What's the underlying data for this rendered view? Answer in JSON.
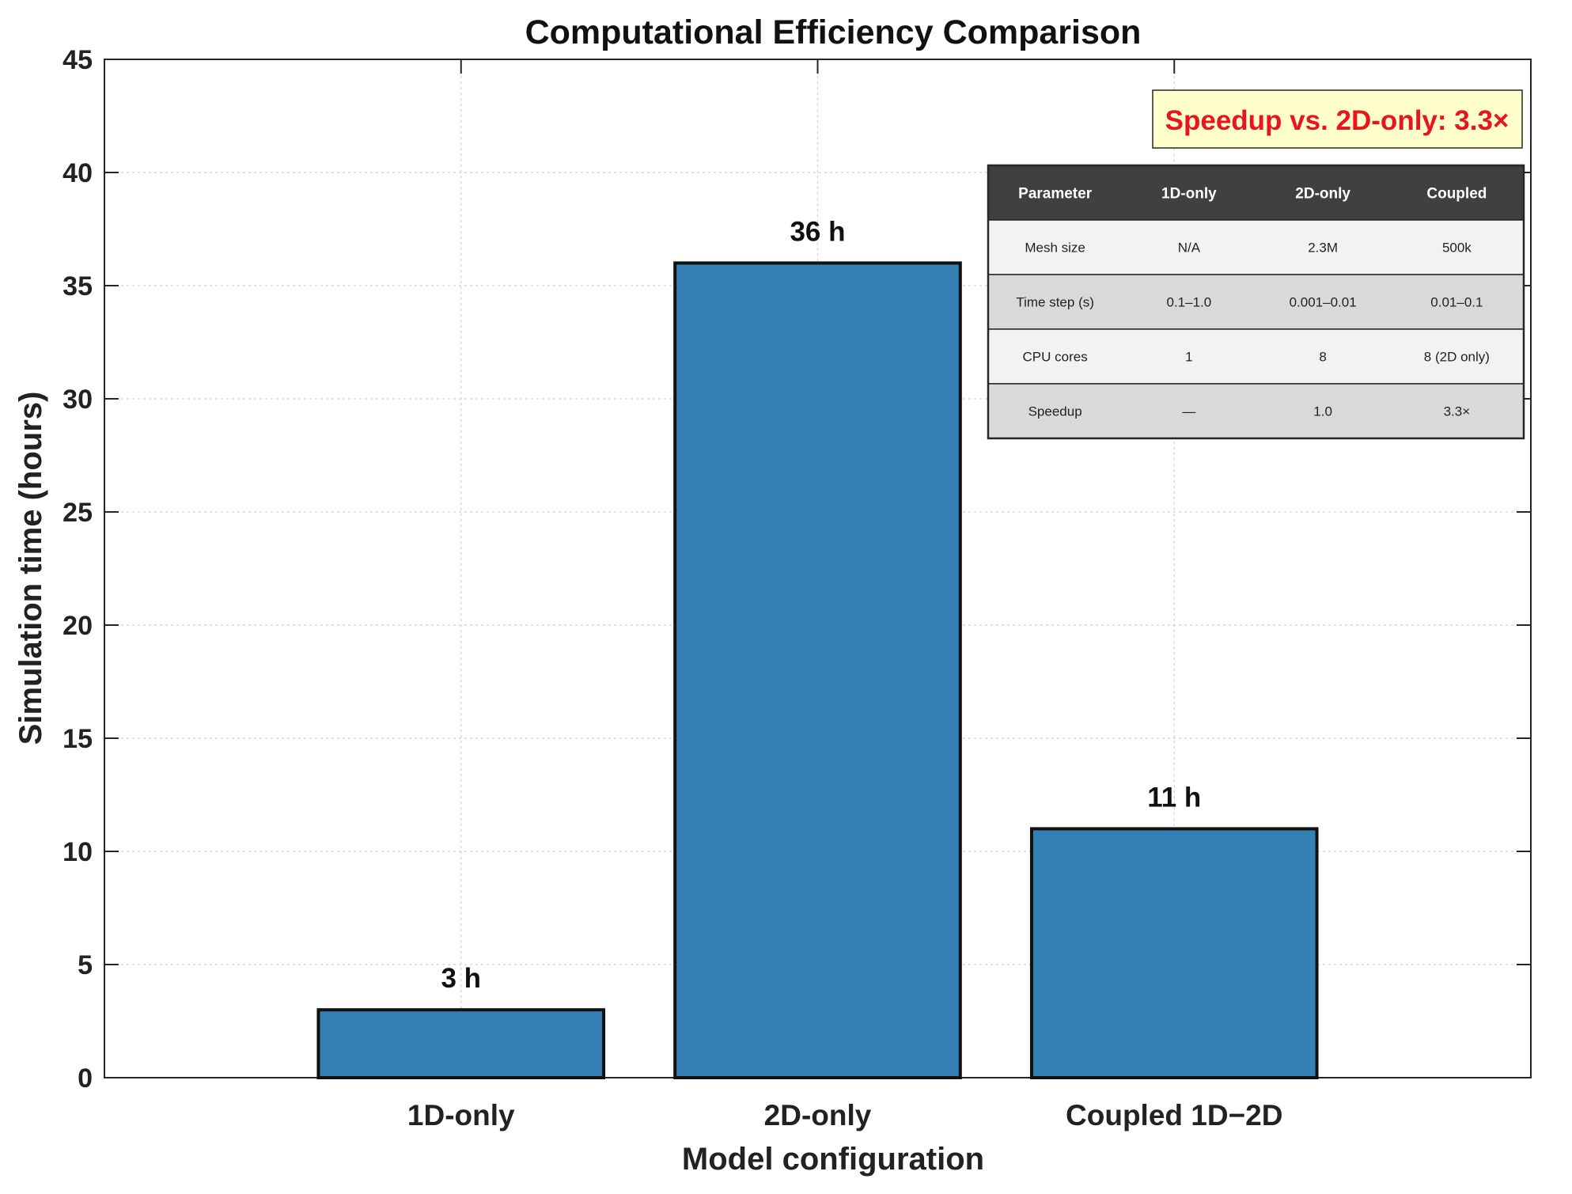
{
  "chart_data": {
    "type": "bar",
    "title": "Computational Efficiency Comparison",
    "xlabel": "Model configuration",
    "ylabel": "Simulation time (hours)",
    "categories": [
      "1D-only",
      "2D-only",
      "Coupled 1D−2D"
    ],
    "values": [
      3,
      36,
      11
    ],
    "data_labels": [
      "3 h",
      "36 h",
      "11 h"
    ],
    "ylim": [
      0,
      45
    ],
    "yticks": [
      0,
      5,
      10,
      15,
      20,
      25,
      30,
      35,
      40,
      45
    ],
    "xlim": [
      0,
      4
    ],
    "bar_color": "#3480b4",
    "grid": true,
    "annotation": {
      "text": "Speedup vs. 2D-only: 3.3×",
      "text_color": "#e8141e",
      "box_color": "#ffffcc"
    },
    "table": {
      "header": [
        "Parameter",
        "1D-only",
        "2D-only",
        "Coupled"
      ],
      "rows": [
        [
          "Mesh size",
          "N/A",
          "2.3M",
          "500k"
        ],
        [
          "Time step (s)",
          "0.1–1.0",
          "0.001–0.01",
          "0.01–0.1"
        ],
        [
          "CPU cores",
          "1",
          "8",
          "8 (2D only)"
        ],
        [
          "Speedup",
          "—",
          "1.0",
          "3.3×"
        ]
      ],
      "header_color": "#404040",
      "row_colors": [
        "#f2f2f2",
        "#d9d9d9"
      ]
    }
  }
}
